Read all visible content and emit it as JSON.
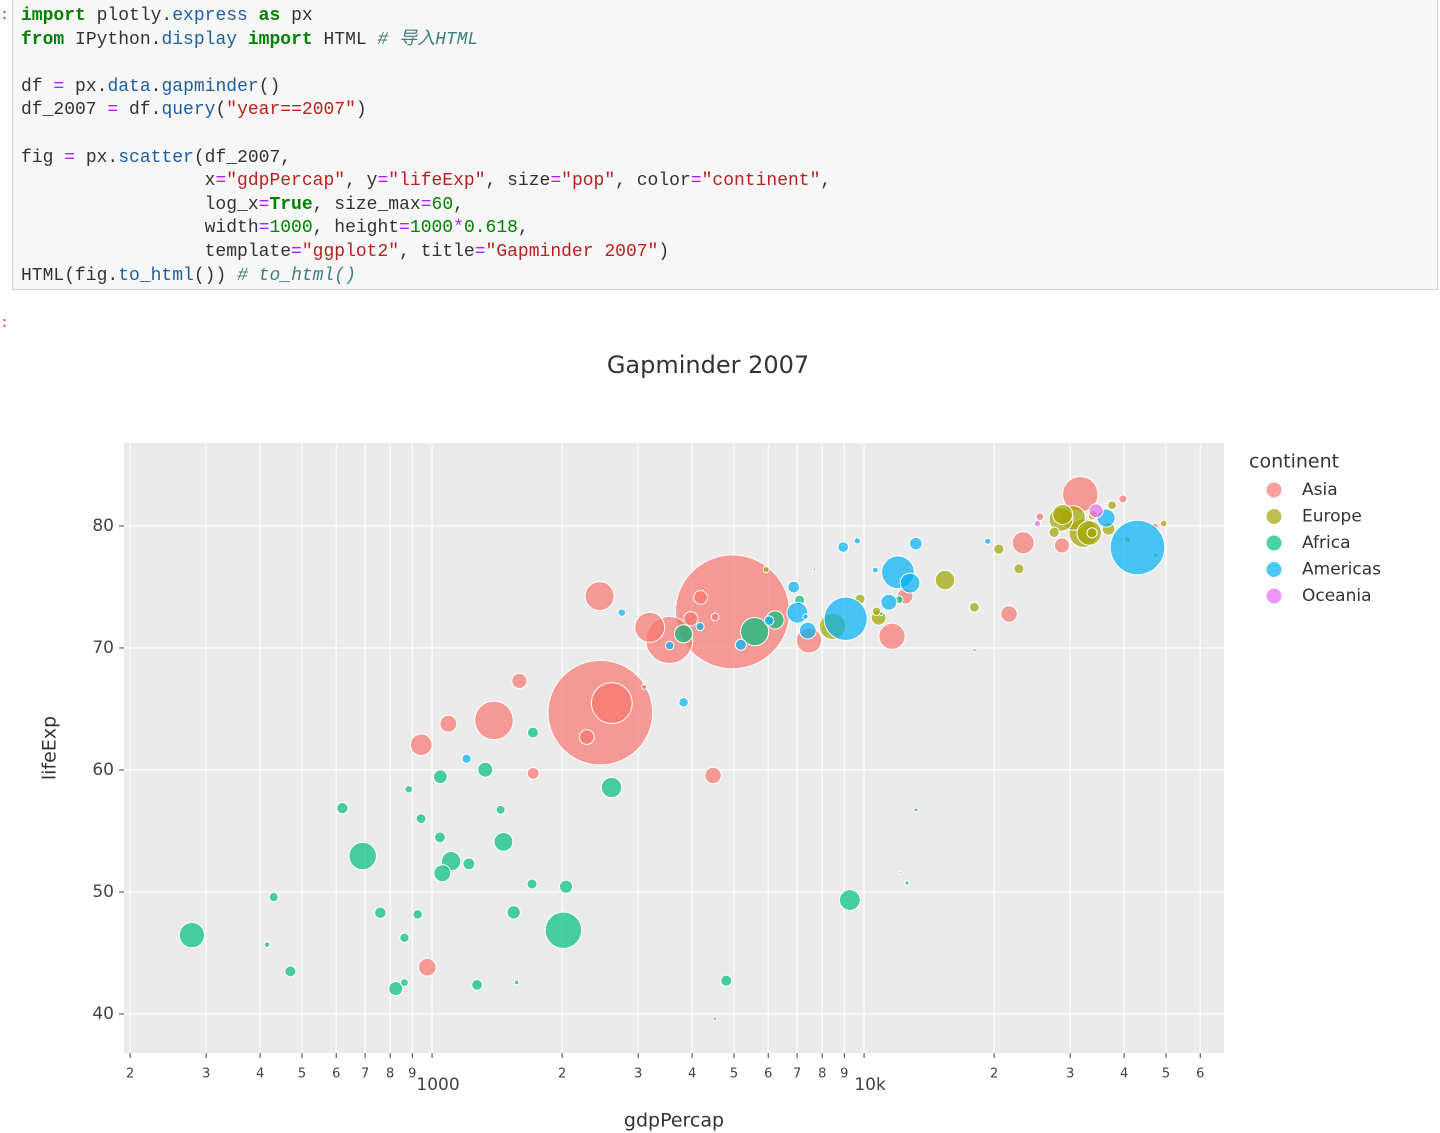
{
  "prompts": [
    ":",
    ":"
  ],
  "code": "import plotly.express as px\nfrom IPython.display import HTML # 导入HTML\n\ndf = px.data.gapminder()\ndf_2007 = df.query(\"year==2007\")\n\nfig = px.scatter(df_2007,\n                 x=\"gdpPercap\", y=\"lifeExp\", size=\"pop\", color=\"continent\",\n                 log_x=True, size_max=60,\n                 width=1000, height=1000*0.618,\n                 template=\"ggplot2\", title=\"Gapminder 2007\")\nHTML(fig.to_html()) # to_html()",
  "chart_data": {
    "type": "scatter",
    "title": "Gapminder 2007",
    "x_label": "gdpPercap",
    "y_label": "lifeExp",
    "legend_title": "continent",
    "legend_position": "right",
    "log_x": true,
    "grid": true,
    "xlim": [
      193.6,
      68100
    ],
    "ylim": [
      36.8,
      86.8
    ],
    "xticks": [
      {
        "value": 200,
        "label": "2"
      },
      {
        "value": 300,
        "label": "3"
      },
      {
        "value": 400,
        "label": "4"
      },
      {
        "value": 500,
        "label": "5"
      },
      {
        "value": 600,
        "label": "6"
      },
      {
        "value": 700,
        "label": "7"
      },
      {
        "value": 800,
        "label": "8"
      },
      {
        "value": 900,
        "label": "9"
      },
      1000,
      {
        "value": 2000,
        "label": "2"
      },
      {
        "value": 3000,
        "label": "3"
      },
      {
        "value": 4000,
        "label": "4"
      },
      {
        "value": 5000,
        "label": "5"
      },
      {
        "value": 6000,
        "label": "6"
      },
      {
        "value": 7000,
        "label": "7"
      },
      {
        "value": 8000,
        "label": "8"
      },
      {
        "value": 9000,
        "label": "9"
      },
      {
        "value": 10000,
        "label": "10k"
      },
      {
        "value": 20000,
        "label": "2"
      },
      {
        "value": 30000,
        "label": "3"
      },
      {
        "value": 40000,
        "label": "4"
      },
      {
        "value": 50000,
        "label": "5"
      },
      {
        "value": 60000,
        "label": "6"
      }
    ],
    "yticks": [
      40,
      50,
      60,
      70,
      80
    ],
    "series": [
      {
        "name": "Asia",
        "color": "#F8766D",
        "x": [
          4959,
          2452,
          3541,
          31656,
          2606,
          1391,
          3190,
          2442,
          11606,
          7458,
          944,
          23348,
          975,
          1091,
          4471,
          21655,
          12452,
          28718,
          1593,
          3970,
          2281,
          4185,
          1714,
          39725,
          25523,
          4519,
          47143,
          47307,
          3096
        ],
        "values": [
          72.96,
          64.7,
          70.65,
          82.6,
          65.48,
          64.06,
          71.69,
          74.25,
          70.96,
          70.62,
          62.07,
          78.62,
          43.83,
          63.79,
          59.55,
          72.78,
          74.24,
          78.4,
          67.3,
          72.4,
          62.7,
          74.14,
          59.72,
          82.21,
          80.75,
          72.54,
          79.97,
          77.59,
          66.8
        ],
        "size": [
          1318683096,
          1110396331,
          223547000,
          127467972,
          169270617,
          150448339,
          91077287,
          85262356,
          69453570,
          65068149,
          47761980,
          49044790,
          31889923,
          28901790,
          27499638,
          27601038,
          24821286,
          23174294,
          23301725,
          20378239,
          22211743,
          19314747,
          14131858,
          6980412,
          6426679,
          6053193,
          4553009,
          2505559,
          2874127
        ]
      },
      {
        "name": "Europe",
        "color": "#A3A500",
        "x": [
          32170,
          8458,
          30470,
          33203,
          28570,
          28821,
          15390,
          10808,
          36798,
          27538,
          20510,
          33693,
          22833,
          18009,
          9787,
          33860,
          10681,
          37506,
          49357,
          40676,
          5937,
          36181
        ],
        "values": [
          79.41,
          71.78,
          80.66,
          79.43,
          80.55,
          80.94,
          75.56,
          72.48,
          79.76,
          79.48,
          78.1,
          79.44,
          76.49,
          73.34,
          74,
          80.88,
          73.01,
          81.7,
          80.2,
          78.89,
          76.42,
          81.76
        ],
        "size": [
          82400996,
          71158647,
          61083916,
          60776238,
          58147733,
          40448191,
          38518241,
          22276056,
          16570613,
          10706290,
          10642836,
          10392226,
          10228744,
          9956108,
          10150265,
          9031088,
          7322858,
          7554661,
          4627926,
          4109086,
          3600523,
          301931
        ]
      },
      {
        "name": "Africa",
        "color": "#00BF7D",
        "x": [
          2014,
          691,
          5581,
          278,
          9270,
          2602,
          1107,
          1463,
          3820,
          6223,
          1056,
          1328,
          824,
          1045,
          1545,
          2042,
          4797,
          759,
          620,
          1217,
          1043,
          1271,
          1712,
          470,
          7093,
          1704,
          943,
          863,
          430,
          1441,
          926,
          12057,
          863,
          883,
          415,
          12570,
          1569,
          12154,
          13206,
          7670,
          10957,
          4513
        ],
        "values": [
          46.86,
          52.95,
          71.34,
          46.46,
          49.34,
          58.56,
          52.52,
          54.11,
          71.16,
          72.3,
          51.54,
          60.02,
          42.08,
          59.44,
          48.33,
          50.43,
          42.73,
          48.3,
          56.87,
          52.3,
          54.47,
          42.38,
          63.06,
          43.49,
          73.92,
          50.65,
          56.01,
          46.24,
          49.58,
          56.73,
          48.16,
          73.95,
          42.57,
          58.42,
          45.68,
          50.73,
          42.59,
          51.58,
          56.73,
          76.44,
          72.8,
          39.61
        ],
        "size": [
          135031164,
          76511887,
          80264543,
          64606759,
          43997828,
          42292929,
          38139640,
          35610177,
          33757175,
          33333216,
          29170398,
          22873338,
          19951656,
          19167654,
          18013409,
          17696293,
          12420476,
          13327079,
          12894865,
          14326203,
          12031795,
          11746035,
          12267493,
          12311143,
          10276158,
          10238807,
          9947814,
          8860588,
          8390505,
          8078314,
          9118773,
          6036914,
          6144562,
          5701579,
          3193942,
          1639131,
          2012649,
          551201,
          1454867,
          798094,
          1250882,
          1133066
        ]
      },
      {
        "name": "Americas",
        "color": "#00B0F6",
        "x": [
          42952,
          9066,
          11978,
          7007,
          12779,
          36319,
          7409,
          11416,
          13172,
          6873,
          5186,
          8948,
          3822,
          1202,
          6025,
          3548,
          4173,
          2749,
          9645,
          10611,
          7321,
          18008,
          19329
        ],
        "values": [
          78.24,
          72.39,
          76.2,
          72.89,
          75.32,
          80.65,
          71.42,
          73.75,
          78.55,
          74.99,
          70.26,
          78.27,
          65.55,
          60.92,
          72.24,
          70.2,
          71.75,
          72.9,
          78.78,
          76.38,
          72.57,
          69.82,
          78.75
        ],
        "size": [
          301139947,
          190010647,
          108700891,
          44227550,
          40301927,
          33390141,
          28674757,
          26084662,
          16284741,
          13755680,
          12572928,
          11416987,
          9119152,
          8502814,
          9319622,
          7483763,
          6667147,
          5675356,
          4133884,
          3447496,
          2780132,
          1056608,
          3942491
        ]
      },
      {
        "name": "Oceania",
        "color": "#E76BF3",
        "x": [
          34435,
          25185
        ],
        "values": [
          81.24,
          80.2
        ],
        "size": [
          20434176,
          4115771
        ]
      }
    ]
  }
}
